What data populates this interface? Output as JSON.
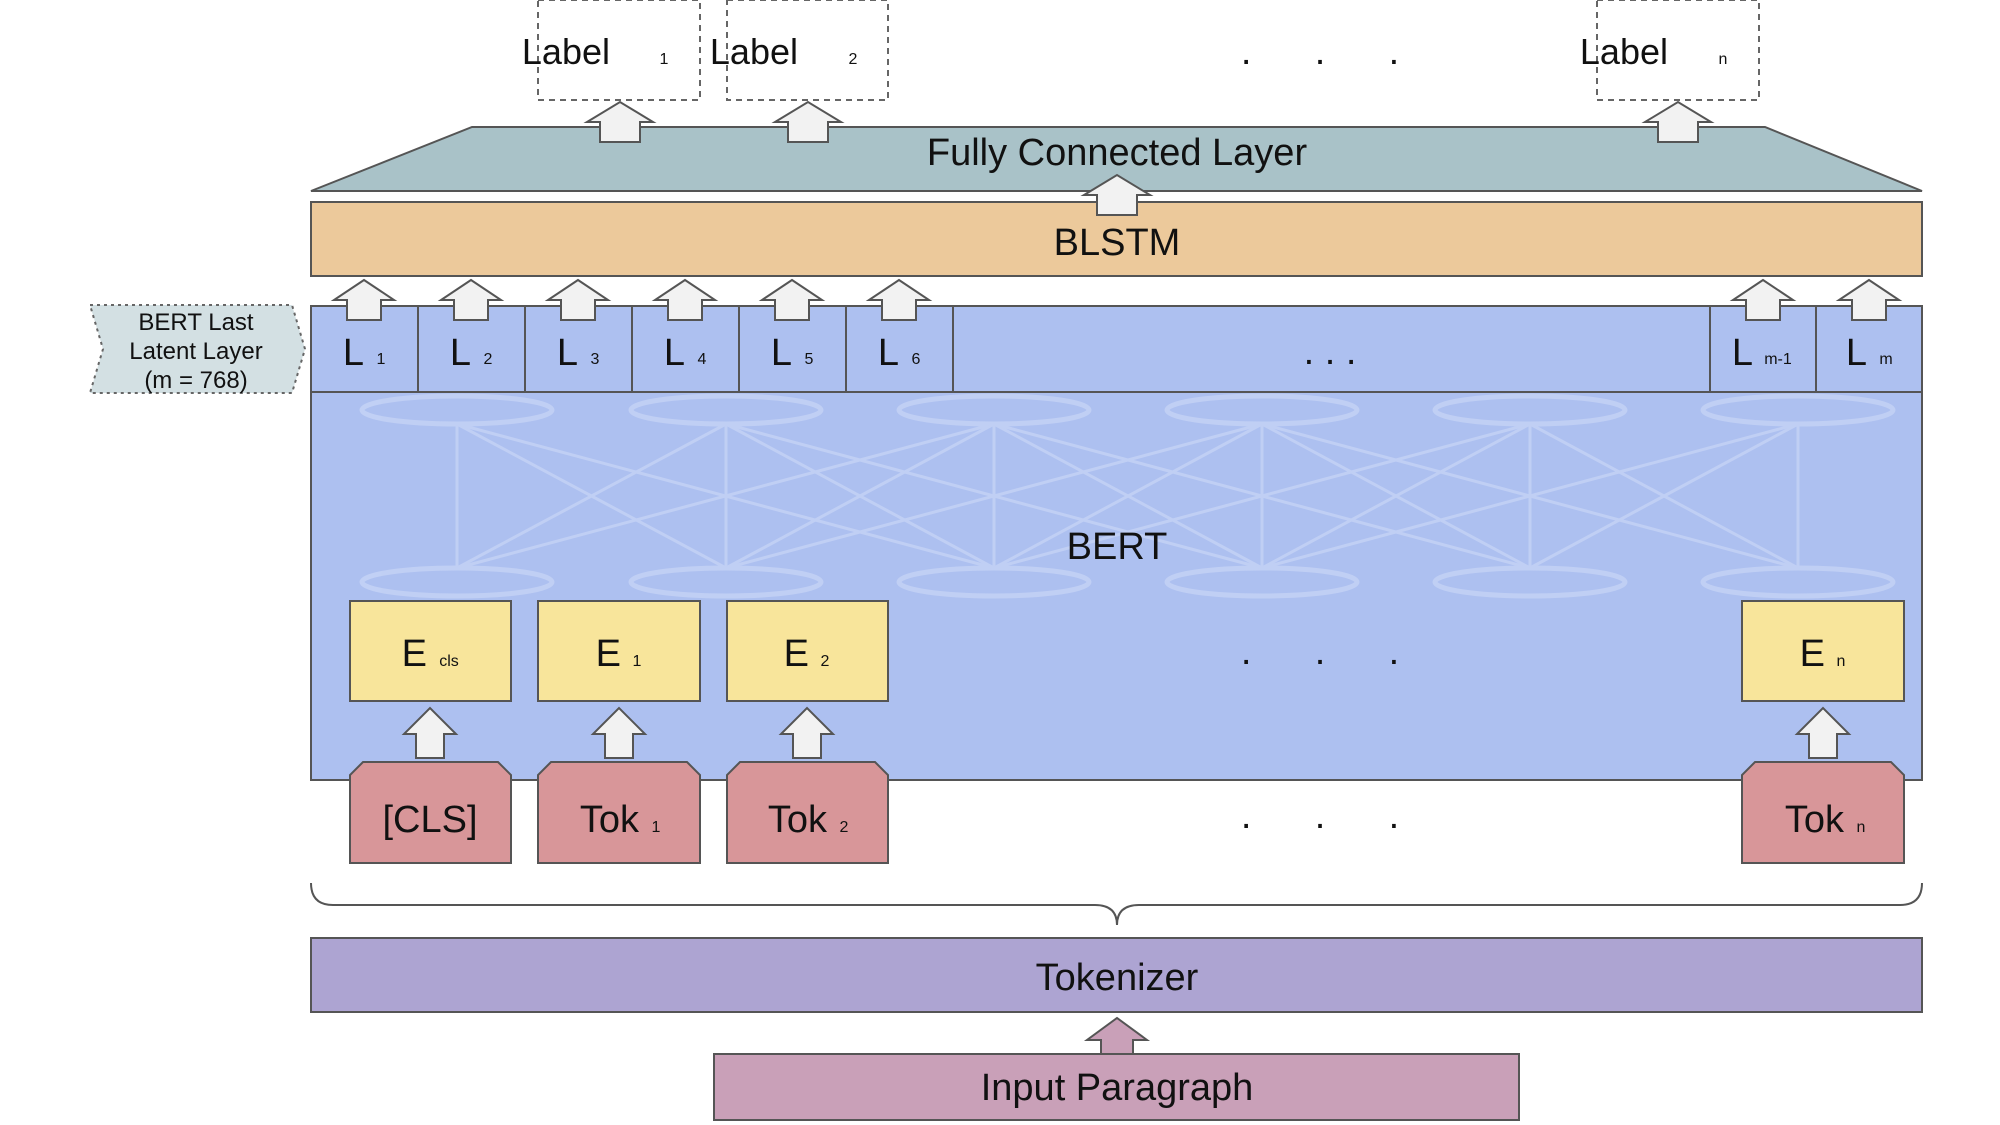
{
  "colors": {
    "label_border": "#666666",
    "fc_layer": "#a9c2c8",
    "blstm": "#ecc99b",
    "bert": "#adc0f0",
    "embedding": "#f8e59b",
    "token": "#d89699",
    "tokenizer": "#ada4d2",
    "input": "#c9a0b8",
    "callout": "#d3e0e3",
    "arrow_fill": "#f2f2f2"
  },
  "labels": [
    {
      "main": "Label",
      "sub": "1"
    },
    {
      "main": "Label",
      "sub": "2"
    },
    {
      "main": "Label",
      "sub": "n"
    }
  ],
  "label_ellipsis": ".      .      .",
  "fc_layer": {
    "label": "Fully Connected Layer"
  },
  "blstm": {
    "label": "BLSTM"
  },
  "callout": {
    "lines": [
      "BERT Last",
      "Latent Layer",
      "(m = 768)"
    ]
  },
  "latent_cells": [
    {
      "main": "L",
      "sub": "1"
    },
    {
      "main": "L",
      "sub": "2"
    },
    {
      "main": "L",
      "sub": "3"
    },
    {
      "main": "L",
      "sub": "4"
    },
    {
      "main": "L",
      "sub": "5"
    },
    {
      "main": "L",
      "sub": "6"
    },
    {
      "main": "L",
      "sub": "m-1"
    },
    {
      "main": "L",
      "sub": "m"
    }
  ],
  "latent_ellipsis": ". . .",
  "bert": {
    "label": "BERT"
  },
  "embeddings": [
    {
      "main": "E",
      "sub": "cls"
    },
    {
      "main": "E",
      "sub": "1"
    },
    {
      "main": "E",
      "sub": "2"
    },
    {
      "main": "E",
      "sub": "n"
    }
  ],
  "embedding_ellipsis": ".      .      .",
  "tokens": [
    {
      "main": "[CLS]",
      "sub": ""
    },
    {
      "main": "Tok",
      "sub": "1"
    },
    {
      "main": "Tok",
      "sub": "2"
    },
    {
      "main": "Tok",
      "sub": "n"
    }
  ],
  "token_ellipsis": ".      .      .",
  "tokenizer": {
    "label": "Tokenizer"
  },
  "input": {
    "label": "Input Paragraph"
  }
}
